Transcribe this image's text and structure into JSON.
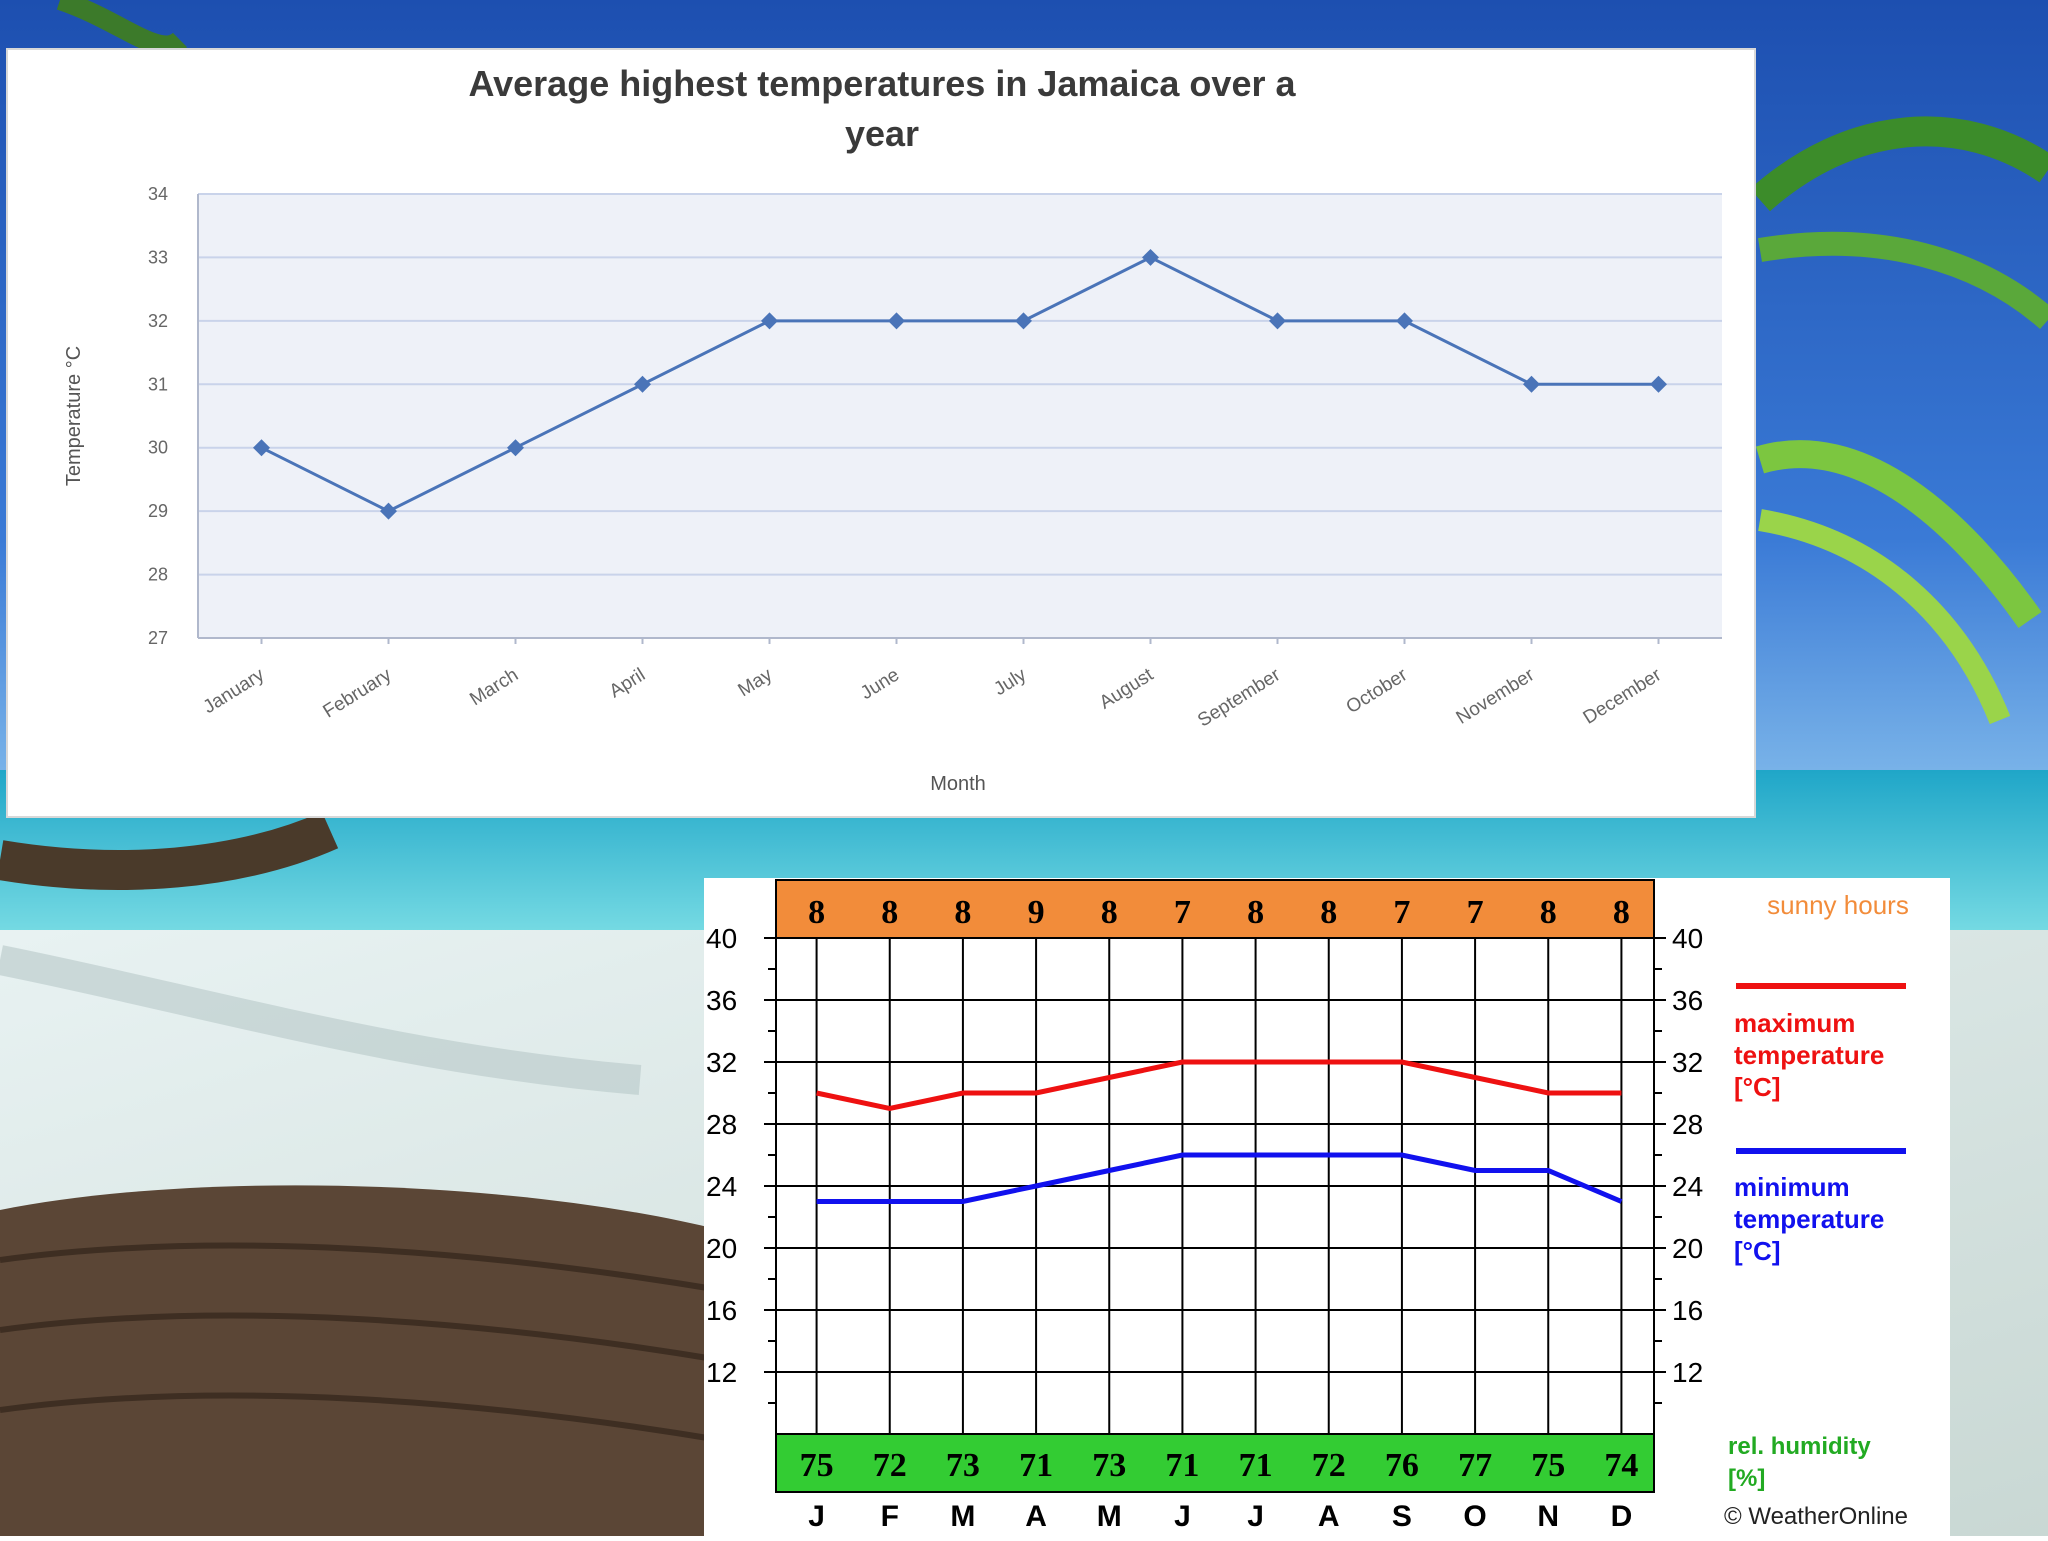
{
  "chart_data": [
    {
      "type": "line",
      "title": "Average highest temperatures in Jamaica over a year",
      "xlabel": "Month",
      "ylabel": "Temperature °C",
      "categories": [
        "January",
        "February",
        "March",
        "April",
        "May",
        "June",
        "July",
        "August",
        "September",
        "October",
        "November",
        "December"
      ],
      "y_ticks": [
        "27",
        "28",
        "29",
        "30",
        "31",
        "32",
        "33",
        "34"
      ],
      "ylim": [
        27,
        34
      ],
      "grid": true,
      "series": [
        {
          "values": [
            30,
            29,
            30,
            31,
            32,
            32,
            32,
            33,
            32,
            32,
            31,
            31
          ]
        }
      ],
      "colors": {
        "line": "#4a74b8",
        "plot_bg": "#eef1f8",
        "grid": "#c9d3ea"
      }
    },
    {
      "type": "line",
      "categories": [
        "J",
        "F",
        "M",
        "A",
        "M",
        "J",
        "J",
        "A",
        "S",
        "O",
        "N",
        "D"
      ],
      "y_ticks": [
        "12",
        "16",
        "20",
        "24",
        "28",
        "32",
        "36",
        "40"
      ],
      "ylim": [
        8,
        40
      ],
      "grid": true,
      "sunny_hours": [
        "8",
        "8",
        "8",
        "9",
        "8",
        "7",
        "8",
        "8",
        "7",
        "7",
        "8",
        "8"
      ],
      "humidity": [
        "75",
        "72",
        "73",
        "71",
        "73",
        "71",
        "71",
        "72",
        "76",
        "77",
        "75",
        "74"
      ],
      "series": [
        {
          "name": "maximum temperature [°C]",
          "values": [
            30,
            29,
            30,
            30,
            31,
            32,
            32,
            32,
            32,
            31,
            30,
            30
          ],
          "color": "#ee1111"
        },
        {
          "name": "minimum temperature [°C]",
          "values": [
            23,
            23,
            23,
            24,
            25,
            26,
            26,
            26,
            26,
            25,
            25,
            23
          ],
          "color": "#1111ee"
        }
      ],
      "legend": {
        "sunny": "sunny hours",
        "max_line1": "maximum",
        "max_line2": "temperature",
        "max_line3": "[°C]",
        "min_line1": "minimum",
        "min_line2": "temperature",
        "min_line3": "[°C]",
        "hum_line1": "rel. humidity",
        "hum_line2": "[%]",
        "credit": "© WeatherOnline"
      },
      "colors": {
        "sunny_band": "#f28c3a",
        "humidity_band": "#33cc33",
        "sunny_text": "#f28c3a",
        "humidity_text": "#22aa22"
      }
    }
  ]
}
